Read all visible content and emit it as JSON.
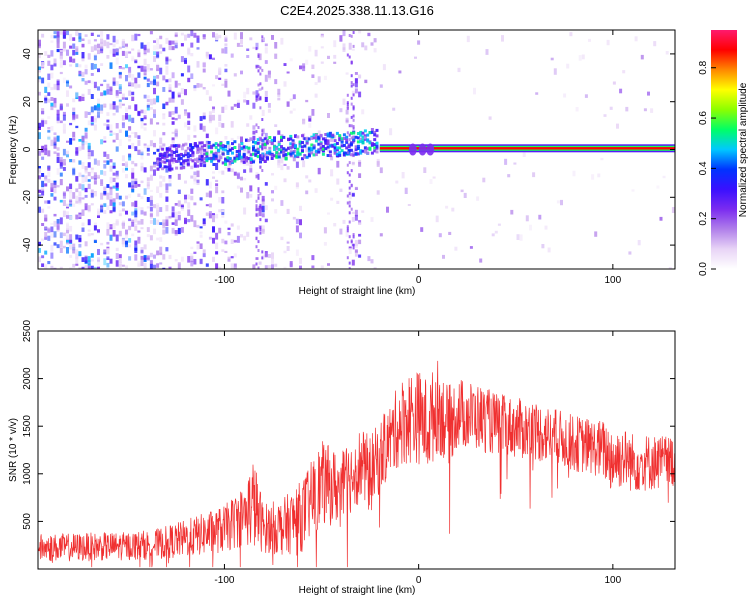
{
  "figure": {
    "title": "C2E4.2025.338.11.13.G16"
  },
  "chart_data": [
    {
      "type": "heatmap",
      "title": "C2E4.2025.338.11.13.G16",
      "xlabel": "Height of straight line (km)",
      "ylabel": "Frequency (Hz)",
      "xlim": [
        -196,
        132
      ],
      "ylim": [
        -50,
        50
      ],
      "xticks": [
        -100,
        0,
        100
      ],
      "yticks": [
        -40,
        -20,
        0,
        20,
        40
      ],
      "colorbar": {
        "label": "Normalized spectral amplitude",
        "range": [
          0.0,
          0.95
        ],
        "ticks": [
          0.0,
          0.2,
          0.4,
          0.6,
          0.8
        ],
        "colormap": [
          "#ffffff",
          "#e8d4f6",
          "#b07fea",
          "#7b2cf0",
          "#3a10ff",
          "#0033ff",
          "#00c8ff",
          "#00ff66",
          "#8cff00",
          "#ffff00",
          "#ff8800",
          "#ff0000",
          "#ff1a6e"
        ]
      },
      "ridge": {
        "description_x_range": [
          -20,
          132
        ],
        "frequency": 0.5
      },
      "grid": false
    },
    {
      "type": "line",
      "xlabel": "Height of straight line (km)",
      "ylabel": "SNR (10 * v/v)",
      "xlim": [
        -196,
        132
      ],
      "ylim": [
        0,
        2500
      ],
      "xticks": [
        -100,
        0,
        100
      ],
      "yticks": [
        500,
        1000,
        1500,
        2000,
        2500
      ],
      "color": "#f03030",
      "envelope": {
        "x": [
          -196,
          -150,
          -135,
          -120,
          -100,
          -90,
          -85,
          -80,
          -70,
          -60,
          -50,
          -40,
          -30,
          -25,
          -20,
          -15,
          -10,
          -5,
          0,
          5,
          10,
          15,
          20,
          30,
          40,
          50,
          60,
          70,
          80,
          90,
          95,
          100,
          105,
          110,
          120,
          132
        ],
        "mean": [
          220,
          240,
          260,
          320,
          420,
          560,
          700,
          430,
          440,
          560,
          900,
          840,
          1100,
          980,
          1180,
          1350,
          1520,
          1600,
          1600,
          1500,
          1720,
          1500,
          1640,
          1600,
          1520,
          1480,
          1450,
          1390,
          1320,
          1280,
          1250,
          1150,
          1180,
          1120,
          1120,
          1130
        ],
        "spread": [
          150,
          150,
          160,
          200,
          250,
          320,
          500,
          260,
          300,
          380,
          450,
          380,
          400,
          420,
          380,
          380,
          450,
          500,
          500,
          500,
          500,
          420,
          380,
          360,
          330,
          320,
          320,
          300,
          300,
          300,
          320,
          380,
          320,
          320,
          300,
          280
        ]
      },
      "grid": false
    }
  ]
}
